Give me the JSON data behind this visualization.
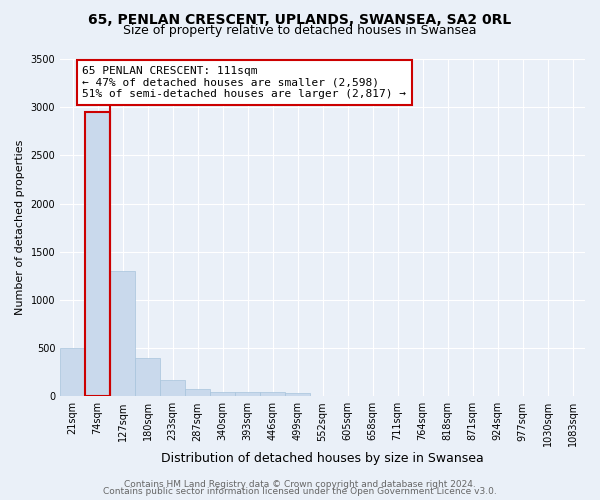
{
  "title1": "65, PENLAN CRESCENT, UPLANDS, SWANSEA, SA2 0RL",
  "title2": "Size of property relative to detached houses in Swansea",
  "xlabel": "Distribution of detached houses by size in Swansea",
  "ylabel": "Number of detached properties",
  "categories": [
    "21sqm",
    "74sqm",
    "127sqm",
    "180sqm",
    "233sqm",
    "287sqm",
    "340sqm",
    "393sqm",
    "446sqm",
    "499sqm",
    "552sqm",
    "605sqm",
    "658sqm",
    "711sqm",
    "764sqm",
    "818sqm",
    "871sqm",
    "924sqm",
    "977sqm",
    "1030sqm",
    "1083sqm"
  ],
  "values": [
    500,
    2950,
    1300,
    400,
    170,
    80,
    50,
    45,
    40,
    35,
    0,
    0,
    0,
    0,
    0,
    0,
    0,
    0,
    0,
    0,
    0
  ],
  "bar_color": "#c9d9ec",
  "bar_edge_color": "#a8c4dc",
  "highlight_color": "#cc0000",
  "property_label": "65 PENLAN CRESCENT: 111sqm",
  "annotation_line1": "← 47% of detached houses are smaller (2,598)",
  "annotation_line2": "51% of semi-detached houses are larger (2,817) →",
  "annotation_box_color": "#ffffff",
  "annotation_box_edge": "#cc0000",
  "ylim": [
    0,
    3500
  ],
  "yticks": [
    0,
    500,
    1000,
    1500,
    2000,
    2500,
    3000,
    3500
  ],
  "footer1": "Contains HM Land Registry data © Crown copyright and database right 2024.",
  "footer2": "Contains public sector information licensed under the Open Government Licence v3.0.",
  "background_color": "#eaf0f8",
  "plot_bg_color": "#eaf0f8",
  "grid_color": "#ffffff",
  "title1_fontsize": 10,
  "title2_fontsize": 9,
  "xlabel_fontsize": 9,
  "ylabel_fontsize": 8,
  "tick_fontsize": 7,
  "annotation_fontsize": 8,
  "footer_fontsize": 6.5
}
